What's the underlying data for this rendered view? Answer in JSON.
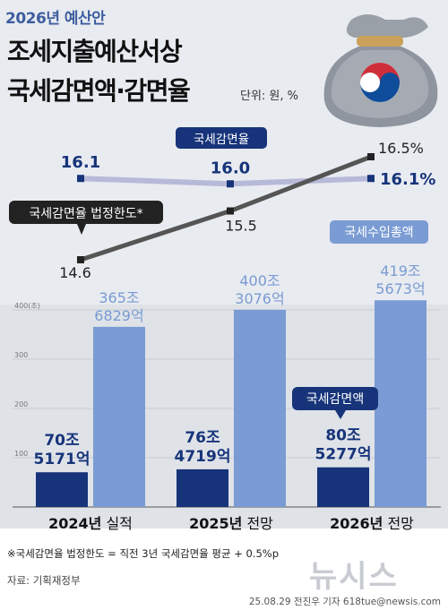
{
  "header": {
    "year_tag": "2026년 예산안",
    "title_line1": "조세지출예산서상",
    "title_line2": "국세감면액·감면율",
    "unit": "단위: 원, %"
  },
  "labels": {
    "reduction_rate": "국세감면율",
    "legal_limit": "국세감면율 법정한도*",
    "total_revenue": "국세수입총액",
    "reduction_amount": "국세감면액"
  },
  "footer": {
    "footnote": "※국세감면율 법정한도 = 직전 3년 국세감면율 평균 + 0.5%p",
    "source": "자료: 기획재정부",
    "credit": "25.08.29 전진우 기자 618tue@newsis.com",
    "watermark": "뉴시스"
  },
  "colors": {
    "dark_blue": "#17347a",
    "light_blue": "#7a9bd3",
    "rate_line": "#b7b9d8",
    "limit_line": "#555555"
  },
  "chart_data": [
    {
      "type": "line",
      "categories": [
        "2024년 실적",
        "2025년 전망",
        "2026년 전망"
      ],
      "series": [
        {
          "name": "국세감면율",
          "values": [
            16.1,
            16.0,
            16.1
          ],
          "labels": [
            "16.1",
            "16.0",
            "16.1%"
          ]
        },
        {
          "name": "국세감면율 법정한도*",
          "values": [
            14.6,
            15.5,
            16.5
          ],
          "labels": [
            "14.6",
            "15.5",
            "16.5%"
          ]
        }
      ]
    },
    {
      "type": "bar",
      "categories": [
        "2024년 실적",
        "2025년 전망",
        "2026년 전망"
      ],
      "category_labels": [
        {
          "year": "2024년",
          "kind": "실적"
        },
        {
          "year": "2025년",
          "kind": "전망"
        },
        {
          "year": "2026년",
          "kind": "전망"
        }
      ],
      "ylim": [
        0,
        400
      ],
      "yticks": [
        0,
        100,
        200,
        300,
        400
      ],
      "ytick_labels": [
        "0",
        "100",
        "200",
        "300",
        "400(조)"
      ],
      "series": [
        {
          "name": "국세감면액",
          "values": [
            70.5171,
            76.4719,
            80.5277
          ],
          "labels": [
            [
              "70조",
              "5171억"
            ],
            [
              "76조",
              "4719억"
            ],
            [
              "80조",
              "5277억"
            ]
          ]
        },
        {
          "name": "국세수입총액",
          "values": [
            365.6829,
            400.3076,
            419.5673
          ],
          "labels": [
            [
              "365조",
              "6829억"
            ],
            [
              "400조",
              "3076억"
            ],
            [
              "419조",
              "5673억"
            ]
          ]
        }
      ]
    }
  ]
}
